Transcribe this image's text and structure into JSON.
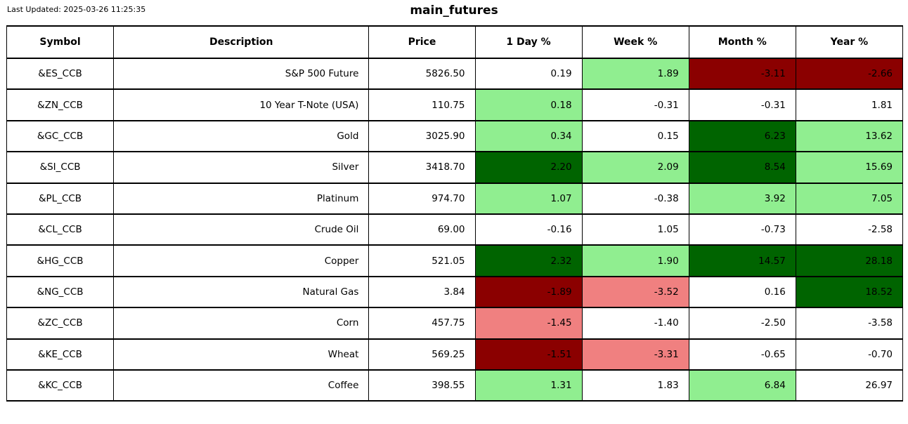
{
  "meta": {
    "last_updated": "Last Updated: 2025-03-26 11:25:35",
    "title": "main_futures"
  },
  "colors": {
    "neutral": "#ffffff",
    "up": "#90ee90",
    "strong_up": "#006400",
    "down": "#f08080",
    "strong_down": "#8b0000"
  },
  "chart_data": {
    "type": "table",
    "title": "main_futures",
    "columns": [
      "Symbol",
      "Description",
      "Price",
      "1 Day %",
      "Week %",
      "Month %",
      "Year %"
    ],
    "rows": [
      {
        "symbol": "&ES_CCB",
        "description": "S&P 500 Future",
        "price": "5826.50",
        "pct": [
          "0.19",
          "1.89",
          "-3.11",
          "-2.66"
        ],
        "pct_colors": [
          "neutral",
          "up",
          "strong_down",
          "strong_down"
        ]
      },
      {
        "symbol": "&ZN_CCB",
        "description": "10 Year T-Note (USA)",
        "price": "110.75",
        "pct": [
          "0.18",
          "-0.31",
          "-0.31",
          "1.81"
        ],
        "pct_colors": [
          "up",
          "neutral",
          "neutral",
          "neutral"
        ]
      },
      {
        "symbol": "&GC_CCB",
        "description": "Gold",
        "price": "3025.90",
        "pct": [
          "0.34",
          "0.15",
          "6.23",
          "13.62"
        ],
        "pct_colors": [
          "up",
          "neutral",
          "strong_up",
          "up"
        ]
      },
      {
        "symbol": "&SI_CCB",
        "description": "Silver",
        "price": "3418.70",
        "pct": [
          "2.20",
          "2.09",
          "8.54",
          "15.69"
        ],
        "pct_colors": [
          "strong_up",
          "up",
          "strong_up",
          "up"
        ]
      },
      {
        "symbol": "&PL_CCB",
        "description": "Platinum",
        "price": "974.70",
        "pct": [
          "1.07",
          "-0.38",
          "3.92",
          "7.05"
        ],
        "pct_colors": [
          "up",
          "neutral",
          "up",
          "up"
        ]
      },
      {
        "symbol": "&CL_CCB",
        "description": "Crude Oil",
        "price": "69.00",
        "pct": [
          "-0.16",
          "1.05",
          "-0.73",
          "-2.58"
        ],
        "pct_colors": [
          "neutral",
          "neutral",
          "neutral",
          "neutral"
        ]
      },
      {
        "symbol": "&HG_CCB",
        "description": "Copper",
        "price": "521.05",
        "pct": [
          "2.32",
          "1.90",
          "14.57",
          "28.18"
        ],
        "pct_colors": [
          "strong_up",
          "up",
          "strong_up",
          "strong_up"
        ]
      },
      {
        "symbol": "&NG_CCB",
        "description": "Natural Gas",
        "price": "3.84",
        "pct": [
          "-1.89",
          "-3.52",
          "0.16",
          "18.52"
        ],
        "pct_colors": [
          "strong_down",
          "down",
          "neutral",
          "strong_up"
        ]
      },
      {
        "symbol": "&ZC_CCB",
        "description": "Corn",
        "price": "457.75",
        "pct": [
          "-1.45",
          "-1.40",
          "-2.50",
          "-3.58"
        ],
        "pct_colors": [
          "down",
          "neutral",
          "neutral",
          "neutral"
        ]
      },
      {
        "symbol": "&KE_CCB",
        "description": "Wheat",
        "price": "569.25",
        "pct": [
          "-1.51",
          "-3.31",
          "-0.65",
          "-0.70"
        ],
        "pct_colors": [
          "strong_down",
          "down",
          "neutral",
          "neutral"
        ]
      },
      {
        "symbol": "&KC_CCB",
        "description": "Coffee",
        "price": "398.55",
        "pct": [
          "1.31",
          "1.83",
          "6.84",
          "26.97"
        ],
        "pct_colors": [
          "up",
          "neutral",
          "up",
          "neutral"
        ]
      }
    ]
  }
}
